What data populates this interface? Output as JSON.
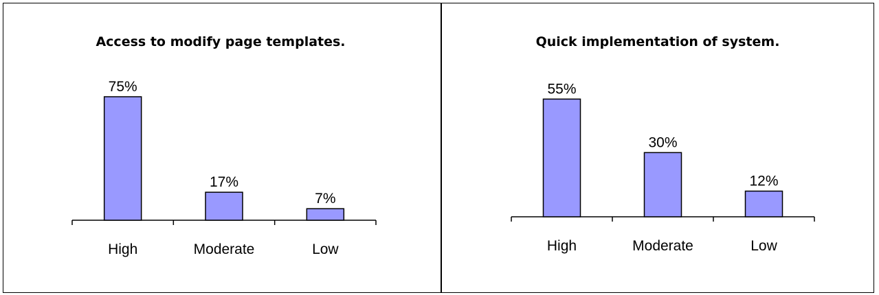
{
  "chart_data": [
    {
      "type": "bar",
      "title": "Access to modify page templates.",
      "categories": [
        "High",
        "Moderate",
        "Low"
      ],
      "values": [
        75,
        17,
        7
      ],
      "value_labels": [
        "75%",
        "17%",
        "7%"
      ],
      "bar_color": "#9999ff",
      "ylim": [
        0,
        80
      ]
    },
    {
      "type": "bar",
      "title": "Quick implementation of system.",
      "categories": [
        "High",
        "Moderate",
        "Low"
      ],
      "values": [
        55,
        30,
        12
      ],
      "value_labels": [
        "55%",
        "30%",
        "12%"
      ],
      "bar_color": "#9999ff",
      "ylim": [
        0,
        60
      ]
    }
  ]
}
